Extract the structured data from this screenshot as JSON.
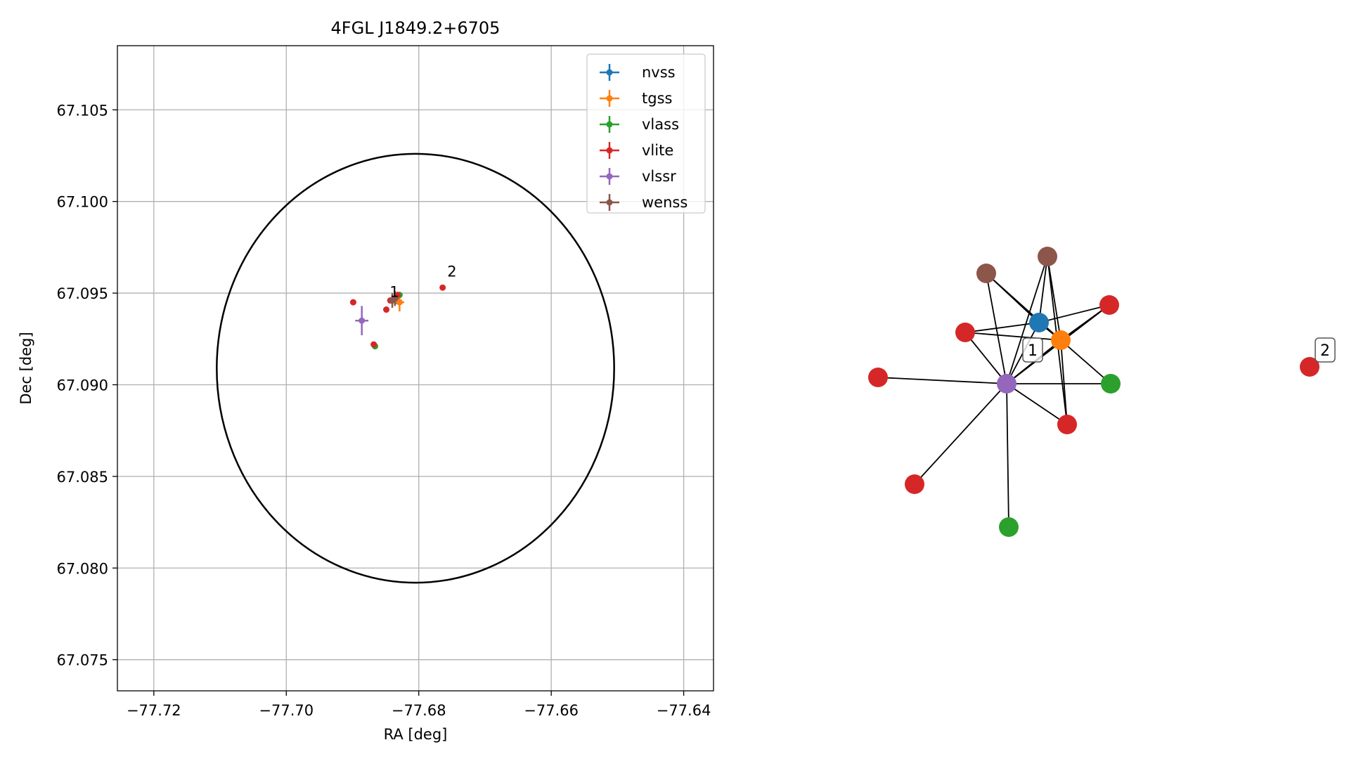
{
  "chart_data": [
    {
      "type": "scatter",
      "title": "4FGL J1849.2+6705",
      "xlabel": "RA [deg]",
      "ylabel": "Dec [deg]",
      "xlim": [
        -77.7255,
        -77.6355
      ],
      "ylim": [
        67.0733,
        67.1085
      ],
      "grid": true,
      "legend_position": "top-right",
      "xticks": [
        -77.72,
        -77.7,
        -77.68,
        -77.66,
        -77.64
      ],
      "xtick_labels": [
        "−77.72",
        "−77.70",
        "−77.68",
        "−77.66",
        "−77.64"
      ],
      "yticks": [
        67.075,
        67.08,
        67.085,
        67.09,
        67.095,
        67.1,
        67.105
      ],
      "ytick_labels": [
        "67.075",
        "67.080",
        "67.085",
        "67.090",
        "67.095",
        "67.100",
        "67.105"
      ],
      "circle": {
        "ra": -77.6805,
        "dec": 67.0909,
        "radius_dec": 0.0117,
        "radius_ra": 0.03,
        "color": "#000000"
      },
      "annotations": [
        {
          "text": "1",
          "x": -77.6844,
          "y": 67.0948
        },
        {
          "text": "2",
          "x": -77.6757,
          "y": 67.0959
        }
      ],
      "series": [
        {
          "name": "nvss",
          "color": "#1f77b4",
          "points": [
            {
              "x": -77.6834,
              "y": 67.0947,
              "xerr": 0.0004,
              "yerr": 0.0003
            }
          ]
        },
        {
          "name": "tgss",
          "color": "#ff7f0e",
          "points": [
            {
              "x": -77.6829,
              "y": 67.0945,
              "xerr": 0.0007,
              "yerr": 0.0005
            }
          ]
        },
        {
          "name": "vlass",
          "color": "#2ca02c",
          "points": [
            {
              "x": -77.6829,
              "y": 67.0949,
              "xerr": 0.0002,
              "yerr": 0.0001
            },
            {
              "x": -77.6866,
              "y": 67.0921,
              "xerr": 0.0002,
              "yerr": 0.0001
            }
          ]
        },
        {
          "name": "vlite",
          "color": "#d62728",
          "points": [
            {
              "x": -77.6899,
              "y": 67.0945,
              "xerr": 0.0002,
              "yerr": 0.0001
            },
            {
              "x": -77.6849,
              "y": 67.0941,
              "xerr": 0.0002,
              "yerr": 0.0001
            },
            {
              "x": -77.6843,
              "y": 67.0946,
              "xerr": 0.0002,
              "yerr": 0.0001
            },
            {
              "x": -77.6868,
              "y": 67.0922,
              "xerr": 0.0002,
              "yerr": 0.0001
            },
            {
              "x": -77.6832,
              "y": 67.0949,
              "xerr": 0.0002,
              "yerr": 0.0001
            },
            {
              "x": -77.6764,
              "y": 67.0953,
              "xerr": 0.0002,
              "yerr": 0.0001
            }
          ]
        },
        {
          "name": "vlssr",
          "color": "#9467bd",
          "points": [
            {
              "x": -77.6886,
              "y": 67.0935,
              "xerr": 0.001,
              "yerr": 0.0008
            }
          ]
        },
        {
          "name": "wenss",
          "color": "#8c564b",
          "points": [
            {
              "x": -77.684,
              "y": 67.0946,
              "xerr": 0.0005,
              "yerr": 0.0004
            },
            {
              "x": -77.6836,
              "y": 67.0947,
              "xerr": 0.0005,
              "yerr": 0.0004
            }
          ]
        }
      ]
    },
    {
      "type": "network",
      "labels": [
        "1",
        "2"
      ],
      "nodes": [
        {
          "id": "blue",
          "series": "nvss",
          "color": "#1f77b4"
        },
        {
          "id": "orange",
          "series": "tgss",
          "color": "#ff7f0e"
        },
        {
          "id": "purple",
          "series": "vlssr",
          "color": "#9467bd",
          "label": "1"
        },
        {
          "id": "brownA",
          "series": "wenss",
          "color": "#8c564b"
        },
        {
          "id": "brownB",
          "series": "wenss",
          "color": "#8c564b"
        },
        {
          "id": "redA",
          "series": "vlite",
          "color": "#d62728"
        },
        {
          "id": "redB",
          "series": "vlite",
          "color": "#d62728"
        },
        {
          "id": "redC",
          "series": "vlite",
          "color": "#d62728"
        },
        {
          "id": "redD",
          "series": "vlite",
          "color": "#d62728"
        },
        {
          "id": "redE",
          "series": "vlite",
          "color": "#d62728"
        },
        {
          "id": "greenA",
          "series": "vlass",
          "color": "#2ca02c"
        },
        {
          "id": "greenB",
          "series": "vlass",
          "color": "#2ca02c"
        },
        {
          "id": "redF",
          "series": "vlite",
          "color": "#d62728",
          "label": "2"
        }
      ],
      "edges": [
        [
          "purple",
          "blue"
        ],
        [
          "purple",
          "orange"
        ],
        [
          "purple",
          "brownA"
        ],
        [
          "purple",
          "brownB"
        ],
        [
          "purple",
          "redA"
        ],
        [
          "purple",
          "redB"
        ],
        [
          "purple",
          "redC"
        ],
        [
          "purple",
          "greenA"
        ],
        [
          "purple",
          "redE"
        ],
        [
          "purple",
          "greenB"
        ],
        [
          "purple",
          "redD"
        ],
        [
          "blue",
          "orange"
        ],
        [
          "blue",
          "redA"
        ],
        [
          "blue",
          "brownA"
        ],
        [
          "blue",
          "brownB"
        ],
        [
          "blue",
          "redB"
        ],
        [
          "orange",
          "redA"
        ],
        [
          "orange",
          "redB"
        ],
        [
          "orange",
          "greenA"
        ],
        [
          "orange",
          "brownA"
        ],
        [
          "orange",
          "brownB"
        ],
        [
          "orange",
          "redD"
        ],
        [
          "brownB",
          "redD"
        ]
      ]
    }
  ]
}
